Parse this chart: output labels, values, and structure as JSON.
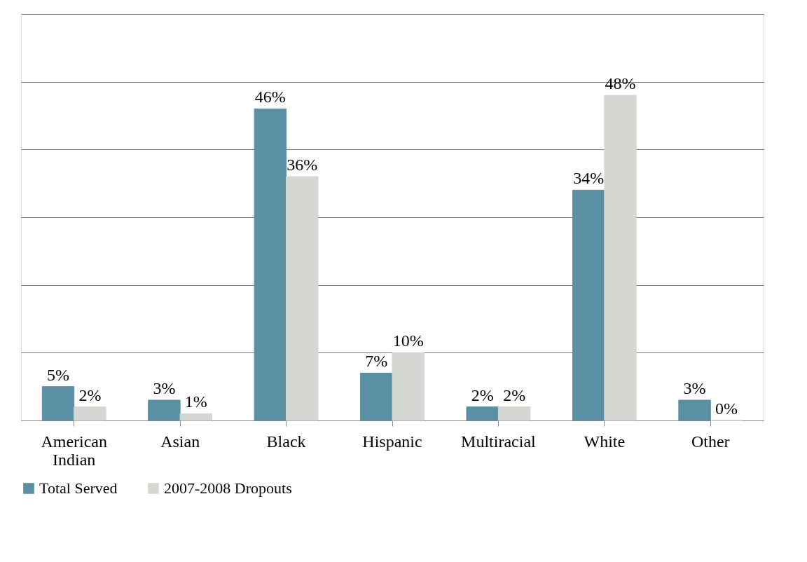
{
  "chart_data": {
    "type": "bar",
    "categories": [
      "American Indian",
      "Asian",
      "Black",
      "Hispanic",
      "Multiracial",
      "White",
      "Other"
    ],
    "series": [
      {
        "name": "Total Served",
        "color": "#5b8fa3",
        "values": [
          5,
          3,
          46,
          7,
          2,
          34,
          3
        ],
        "value_labels": [
          "5%",
          "3%",
          "46%",
          "7%",
          "2%",
          "34%",
          "3%"
        ]
      },
      {
        "name": "2007-2008 Dropouts",
        "color": "#d5d8d2",
        "values": [
          2,
          1,
          36,
          10,
          2,
          48,
          0
        ],
        "value_labels": [
          "2%",
          "1%",
          "36%",
          "10%",
          "2%",
          "48%",
          "0%"
        ]
      }
    ],
    "ylim": [
      0,
      60
    ],
    "yticks": [
      {
        "value": 0,
        "label": null
      },
      {
        "value": 10,
        "label": null
      },
      {
        "value": 20,
        "label": null
      },
      {
        "value": 30,
        "label": null
      },
      {
        "value": 40,
        "label": null
      },
      {
        "value": 50,
        "label": null
      },
      {
        "value": 60,
        "label": null
      }
    ],
    "tick_labels": "x",
    "grid": "y",
    "legend": "bottom"
  }
}
